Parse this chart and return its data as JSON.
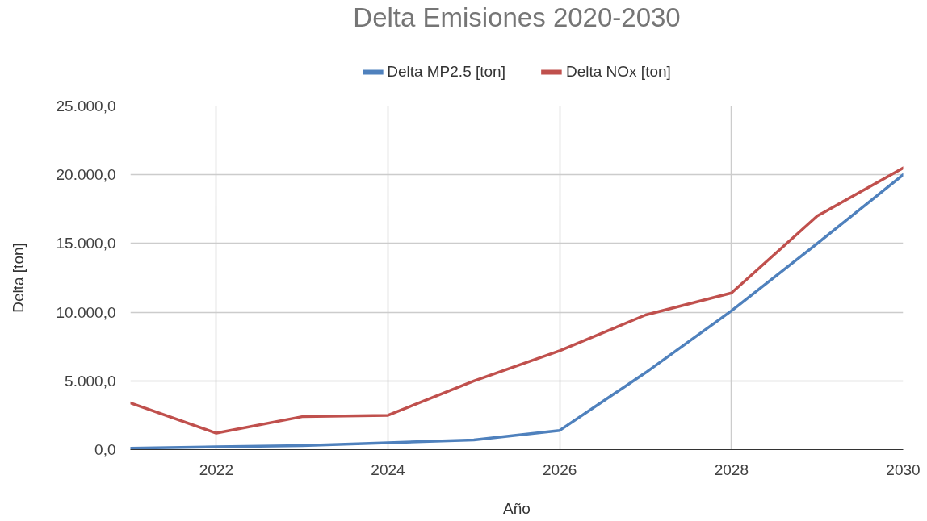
{
  "chart_data": {
    "type": "line",
    "title": "Delta Emisiones 2020-2030",
    "xlabel": "Año",
    "ylabel": "Delta [ton]",
    "x": [
      2021,
      2022,
      2023,
      2024,
      2025,
      2026,
      2027,
      2028,
      2029,
      2030
    ],
    "series": [
      {
        "name": "Delta MP2.5 [ton]",
        "color": "#4f81bd",
        "values": [
          100,
          200,
          300,
          500,
          700,
          1400,
          5600,
          10100,
          15000,
          20000
        ]
      },
      {
        "name": "Delta NOx [ton]",
        "color": "#c0504d",
        "values": [
          3400,
          1200,
          2400,
          2500,
          5000,
          7200,
          9800,
          11400,
          17000,
          20500
        ]
      }
    ],
    "xlim": [
      2021,
      2030
    ],
    "xticks": [
      2022,
      2024,
      2026,
      2028,
      2030
    ],
    "ylim": [
      0,
      25000
    ],
    "yticks": [
      {
        "value": 0,
        "label": "0,0"
      },
      {
        "value": 5000,
        "label": "5.000,0"
      },
      {
        "value": 10000,
        "label": "10.000,0"
      },
      {
        "value": 15000,
        "label": "15.000,0"
      },
      {
        "value": 20000,
        "label": "20.000,0"
      },
      {
        "value": 25000,
        "label": "25.000,0"
      }
    ],
    "grid": true,
    "legend": "top"
  }
}
